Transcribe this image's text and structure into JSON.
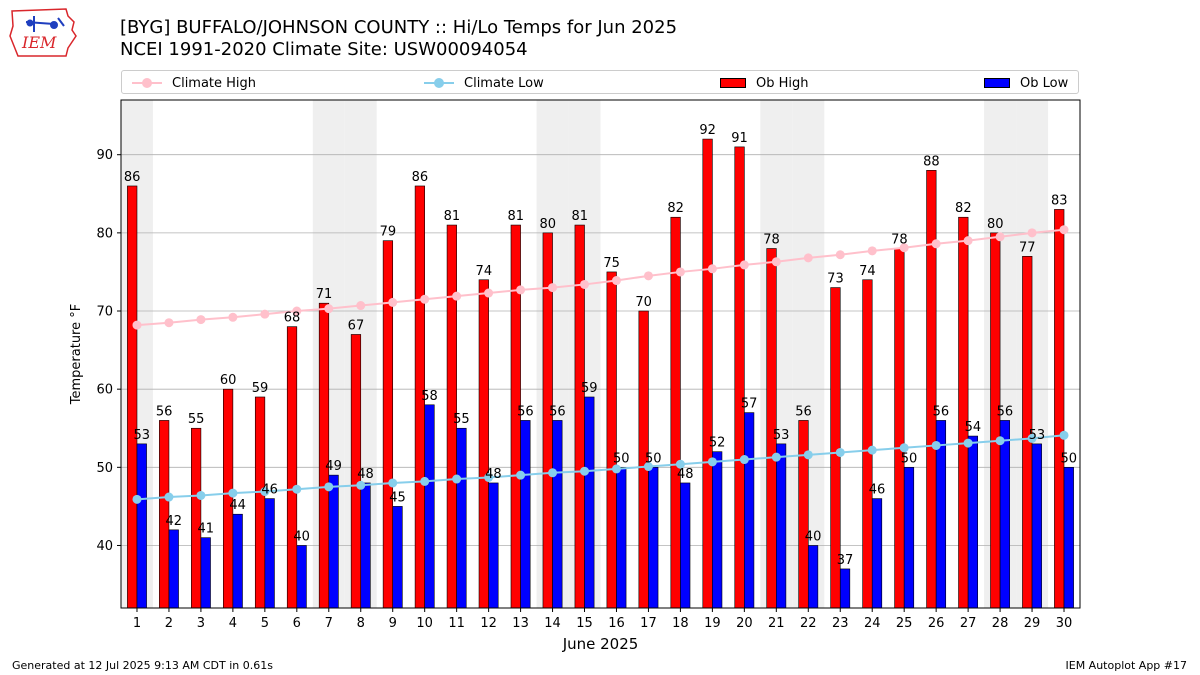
{
  "header": {
    "title_line1": "[BYG] BUFFALO/JOHNSON COUNTY :: Hi/Lo Temps for Jun 2025",
    "title_line2": "NCEI 1991-2020 Climate Site: USW00094054"
  },
  "logo": {
    "text": "IEM",
    "color": "#d9262b"
  },
  "footer": {
    "left": "Generated at 12 Jul 2025 9:13 AM CDT in 0.61s",
    "right": "IEM Autoplot App #17"
  },
  "chart_data": {
    "type": "bar",
    "xlabel": "June 2025",
    "ylabel": "Temperature °F",
    "ylim": [
      32,
      97
    ],
    "yticks": [
      40,
      50,
      60,
      70,
      80,
      90
    ],
    "grid": true,
    "legend_placement": "top",
    "categories": [
      "1",
      "2",
      "3",
      "4",
      "5",
      "6",
      "7",
      "8",
      "9",
      "10",
      "11",
      "12",
      "13",
      "14",
      "15",
      "16",
      "17",
      "18",
      "19",
      "20",
      "21",
      "22",
      "23",
      "24",
      "25",
      "26",
      "27",
      "28",
      "29",
      "30"
    ],
    "weekend_shading_days": [
      1,
      7,
      8,
      14,
      15,
      21,
      22,
      28,
      29
    ],
    "series": [
      {
        "name": "Ob High",
        "kind": "bar",
        "color": "#ff0000",
        "values": [
          86,
          56,
          55,
          60,
          59,
          68,
          71,
          67,
          79,
          86,
          81,
          74,
          81,
          80,
          81,
          75,
          70,
          82,
          92,
          91,
          78,
          56,
          73,
          74,
          78,
          88,
          82,
          80,
          77,
          83
        ]
      },
      {
        "name": "Ob Low",
        "kind": "bar",
        "color": "#0000ff",
        "values": [
          53,
          42,
          41,
          44,
          46,
          40,
          49,
          48,
          45,
          58,
          55,
          48,
          56,
          56,
          59,
          50,
          50,
          48,
          52,
          57,
          53,
          40,
          37,
          46,
          50,
          56,
          54,
          56,
          53,
          50
        ]
      },
      {
        "name": "Climate High",
        "kind": "line",
        "color": "#ffc0cb",
        "values": [
          68.2,
          68.5,
          68.9,
          69.2,
          69.6,
          70.0,
          70.3,
          70.7,
          71.1,
          71.5,
          71.9,
          72.3,
          72.7,
          73.0,
          73.4,
          73.9,
          74.5,
          75.0,
          75.4,
          75.9,
          76.3,
          76.8,
          77.2,
          77.7,
          78.1,
          78.6,
          79.0,
          79.5,
          80.0,
          80.4
        ]
      },
      {
        "name": "Climate Low",
        "kind": "line",
        "color": "#87ceeb",
        "values": [
          45.9,
          46.2,
          46.4,
          46.7,
          46.9,
          47.2,
          47.5,
          47.7,
          48.0,
          48.2,
          48.5,
          48.7,
          49.0,
          49.3,
          49.5,
          49.8,
          50.1,
          50.4,
          50.7,
          51.0,
          51.3,
          51.6,
          51.9,
          52.2,
          52.5,
          52.8,
          53.1,
          53.4,
          53.7,
          54.1
        ]
      }
    ]
  }
}
